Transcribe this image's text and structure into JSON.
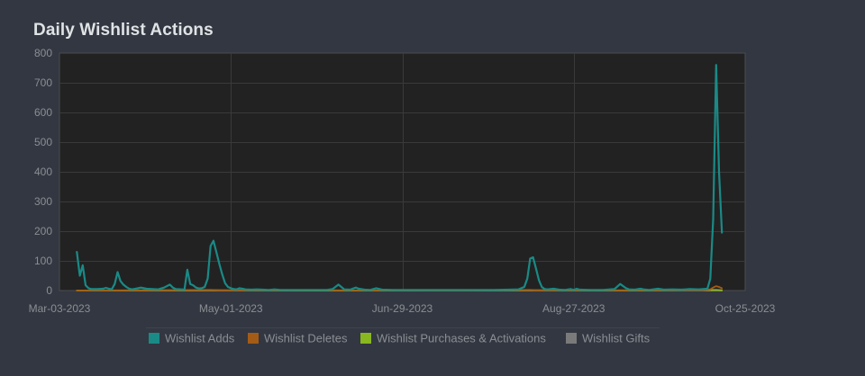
{
  "chart_data": {
    "type": "line",
    "title": "Daily Wishlist Actions",
    "xlabel": "",
    "ylabel": "",
    "ylim": [
      0,
      800
    ],
    "y_ticks": [
      0,
      100,
      200,
      300,
      400,
      500,
      600,
      700,
      800
    ],
    "x_ticks": [
      "Mar-03-2023",
      "May-01-2023",
      "Jun-29-2023",
      "Aug-27-2023",
      "Oct-25-2023"
    ],
    "x_range": [
      "2023-03-03",
      "2023-10-25"
    ],
    "grid": true,
    "legend_position": "bottom",
    "series": [
      {
        "name": "Wishlist Adds",
        "color": "#1a8a86",
        "points": [
          [
            "2023-03-09",
            130
          ],
          [
            "2023-03-10",
            50
          ],
          [
            "2023-03-11",
            85
          ],
          [
            "2023-03-12",
            18
          ],
          [
            "2023-03-13",
            8
          ],
          [
            "2023-03-14",
            5
          ],
          [
            "2023-03-16",
            5
          ],
          [
            "2023-03-18",
            6
          ],
          [
            "2023-03-19",
            9
          ],
          [
            "2023-03-20",
            6
          ],
          [
            "2023-03-21",
            4
          ],
          [
            "2023-03-22",
            22
          ],
          [
            "2023-03-23",
            62
          ],
          [
            "2023-03-24",
            32
          ],
          [
            "2023-03-25",
            20
          ],
          [
            "2023-03-26",
            12
          ],
          [
            "2023-03-27",
            6
          ],
          [
            "2023-03-28",
            4
          ],
          [
            "2023-03-30",
            8
          ],
          [
            "2023-03-31",
            10
          ],
          [
            "2023-04-02",
            6
          ],
          [
            "2023-04-04",
            5
          ],
          [
            "2023-04-06",
            4
          ],
          [
            "2023-04-08",
            10
          ],
          [
            "2023-04-10",
            20
          ],
          [
            "2023-04-11",
            10
          ],
          [
            "2023-04-12",
            5
          ],
          [
            "2023-04-14",
            4
          ],
          [
            "2023-04-15",
            3
          ],
          [
            "2023-04-16",
            70
          ],
          [
            "2023-04-17",
            22
          ],
          [
            "2023-04-18",
            18
          ],
          [
            "2023-04-19",
            10
          ],
          [
            "2023-04-20",
            7
          ],
          [
            "2023-04-21",
            8
          ],
          [
            "2023-04-22",
            12
          ],
          [
            "2023-04-23",
            40
          ],
          [
            "2023-04-24",
            150
          ],
          [
            "2023-04-25",
            168
          ],
          [
            "2023-04-26",
            130
          ],
          [
            "2023-04-27",
            90
          ],
          [
            "2023-04-28",
            55
          ],
          [
            "2023-04-29",
            25
          ],
          [
            "2023-04-30",
            12
          ],
          [
            "2023-05-01",
            8
          ],
          [
            "2023-05-02",
            5
          ],
          [
            "2023-05-03",
            4
          ],
          [
            "2023-05-04",
            8
          ],
          [
            "2023-05-05",
            6
          ],
          [
            "2023-05-06",
            4
          ],
          [
            "2023-05-08",
            3
          ],
          [
            "2023-05-10",
            4
          ],
          [
            "2023-05-12",
            3
          ],
          [
            "2023-05-14",
            2
          ],
          [
            "2023-05-16",
            4
          ],
          [
            "2023-05-18",
            2
          ],
          [
            "2023-05-22",
            2
          ],
          [
            "2023-05-26",
            2
          ],
          [
            "2023-05-30",
            2
          ],
          [
            "2023-06-03",
            2
          ],
          [
            "2023-06-05",
            5
          ],
          [
            "2023-06-07",
            20
          ],
          [
            "2023-06-08",
            12
          ],
          [
            "2023-06-09",
            4
          ],
          [
            "2023-06-11",
            3
          ],
          [
            "2023-06-13",
            10
          ],
          [
            "2023-06-14",
            6
          ],
          [
            "2023-06-16",
            3
          ],
          [
            "2023-06-18",
            2
          ],
          [
            "2023-06-20",
            8
          ],
          [
            "2023-06-22",
            3
          ],
          [
            "2023-06-26",
            2
          ],
          [
            "2023-07-02",
            2
          ],
          [
            "2023-07-10",
            2
          ],
          [
            "2023-07-20",
            2
          ],
          [
            "2023-07-30",
            2
          ],
          [
            "2023-08-05",
            3
          ],
          [
            "2023-08-08",
            4
          ],
          [
            "2023-08-10",
            12
          ],
          [
            "2023-08-11",
            40
          ],
          [
            "2023-08-12",
            108
          ],
          [
            "2023-08-13",
            112
          ],
          [
            "2023-08-14",
            75
          ],
          [
            "2023-08-15",
            35
          ],
          [
            "2023-08-16",
            12
          ],
          [
            "2023-08-17",
            5
          ],
          [
            "2023-08-18",
            4
          ],
          [
            "2023-08-20",
            6
          ],
          [
            "2023-08-22",
            3
          ],
          [
            "2023-08-24",
            2
          ],
          [
            "2023-08-26",
            5
          ],
          [
            "2023-08-27",
            2
          ],
          [
            "2023-08-28",
            6
          ],
          [
            "2023-08-29",
            3
          ],
          [
            "2023-09-02",
            2
          ],
          [
            "2023-09-06",
            2
          ],
          [
            "2023-09-10",
            5
          ],
          [
            "2023-09-12",
            22
          ],
          [
            "2023-09-13",
            15
          ],
          [
            "2023-09-14",
            8
          ],
          [
            "2023-09-15",
            4
          ],
          [
            "2023-09-17",
            3
          ],
          [
            "2023-09-19",
            6
          ],
          [
            "2023-09-20",
            4
          ],
          [
            "2023-09-22",
            2
          ],
          [
            "2023-09-25",
            6
          ],
          [
            "2023-09-27",
            3
          ],
          [
            "2023-09-30",
            4
          ],
          [
            "2023-10-03",
            3
          ],
          [
            "2023-10-06",
            5
          ],
          [
            "2023-10-09",
            4
          ],
          [
            "2023-10-12",
            6
          ],
          [
            "2023-10-13",
            40
          ],
          [
            "2023-10-14",
            240
          ],
          [
            "2023-10-15",
            760
          ],
          [
            "2023-10-16",
            400
          ],
          [
            "2023-10-17",
            195
          ]
        ]
      },
      {
        "name": "Wishlist Deletes",
        "color": "#a45b15",
        "points": [
          [
            "2023-03-09",
            0
          ],
          [
            "2023-04-24",
            2
          ],
          [
            "2023-04-28",
            1
          ],
          [
            "2023-05-04",
            1
          ],
          [
            "2023-06-07",
            1
          ],
          [
            "2023-07-15",
            0
          ],
          [
            "2023-08-12",
            2
          ],
          [
            "2023-08-14",
            1
          ],
          [
            "2023-09-12",
            1
          ],
          [
            "2023-10-10",
            1
          ],
          [
            "2023-10-13",
            4
          ],
          [
            "2023-10-14",
            10
          ],
          [
            "2023-10-15",
            15
          ],
          [
            "2023-10-16",
            12
          ],
          [
            "2023-10-17",
            8
          ]
        ]
      },
      {
        "name": "Wishlist Purchases & Activations",
        "color": "#89b71f",
        "points": [
          [
            "2023-03-09",
            0
          ],
          [
            "2023-04-25",
            1
          ],
          [
            "2023-06-01",
            0
          ],
          [
            "2023-08-13",
            1
          ],
          [
            "2023-09-20",
            0
          ],
          [
            "2023-10-15",
            2
          ],
          [
            "2023-10-17",
            1
          ]
        ]
      },
      {
        "name": "Wishlist Gifts",
        "color": "#7a7a7a",
        "points": [
          [
            "2023-03-09",
            0
          ],
          [
            "2023-10-17",
            0
          ]
        ]
      }
    ]
  }
}
